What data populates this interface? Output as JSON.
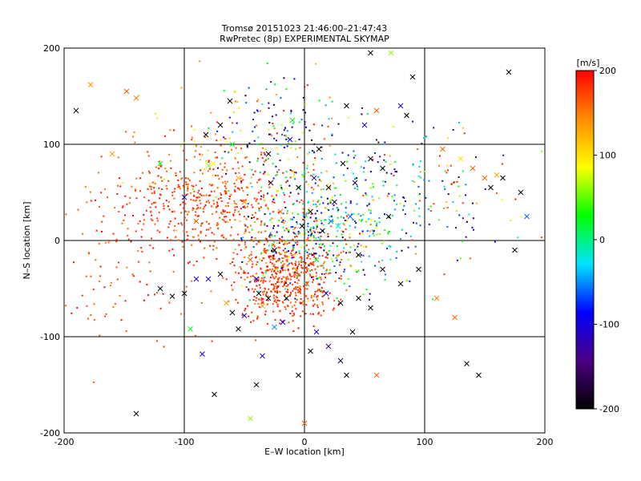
{
  "chart_data": {
    "type": "scatter",
    "title": "Tromsø 20151023 21:46:00–21:47:43",
    "subtitle": "RwPretec (8p) EXPERIMENTAL SKYMAP",
    "xlabel": "E–W location [km]",
    "ylabel": "N–S location [km]",
    "xlim": [
      -200,
      200
    ],
    "ylim": [
      -200,
      200
    ],
    "x_ticks": [
      -200,
      -100,
      0,
      100,
      200
    ],
    "y_ticks": [
      -200,
      -100,
      0,
      100,
      200
    ],
    "grid": true,
    "colorbar": {
      "label": "[m/s]",
      "range": [
        -200,
        200
      ],
      "ticks": [
        200,
        100,
        0,
        -100,
        -200
      ],
      "colormap": [
        "#000000",
        "#4b0082",
        "#0000ff",
        "#00e5ff",
        "#00ff00",
        "#ffff00",
        "#ff8c00",
        "#ff0000"
      ]
    },
    "series": [
      {
        "marker": "cross",
        "points": [
          [
            -178,
            162,
            140
          ],
          [
            -160,
            90,
            130
          ],
          [
            -148,
            155,
            160
          ],
          [
            -140,
            148,
            150
          ],
          [
            -120,
            80,
            20
          ],
          [
            -100,
            45,
            -120
          ],
          [
            -90,
            20,
            160
          ],
          [
            -82,
            110,
            -200
          ],
          [
            -80,
            78,
            60
          ],
          [
            -76,
            80,
            90
          ],
          [
            -70,
            120,
            -200
          ],
          [
            -62,
            145,
            -200
          ],
          [
            -60,
            100,
            20
          ],
          [
            -55,
            65,
            120
          ],
          [
            -50,
            40,
            140
          ],
          [
            -45,
            -20,
            160
          ],
          [
            -40,
            -40,
            -100
          ],
          [
            -38,
            -55,
            -200
          ],
          [
            -35,
            -68,
            140
          ],
          [
            -30,
            90,
            -200
          ],
          [
            -28,
            60,
            -180
          ],
          [
            -25,
            -10,
            -200
          ],
          [
            -20,
            30,
            160
          ],
          [
            -18,
            -85,
            -100
          ],
          [
            -15,
            -60,
            -200
          ],
          [
            -12,
            105,
            -120
          ],
          [
            -10,
            125,
            30
          ],
          [
            -8,
            -35,
            160
          ],
          [
            -5,
            55,
            -200
          ],
          [
            -2,
            15,
            -200
          ],
          [
            2,
            -45,
            170
          ],
          [
            5,
            30,
            -200
          ],
          [
            8,
            65,
            -120
          ],
          [
            10,
            -20,
            20
          ],
          [
            12,
            95,
            -200
          ],
          [
            15,
            10,
            -200
          ],
          [
            18,
            -55,
            -100
          ],
          [
            20,
            55,
            -200
          ],
          [
            22,
            20,
            -50
          ],
          [
            25,
            40,
            -180
          ],
          [
            28,
            15,
            -30
          ],
          [
            30,
            -65,
            -200
          ],
          [
            32,
            80,
            -200
          ],
          [
            35,
            140,
            -200
          ],
          [
            38,
            25,
            -60
          ],
          [
            40,
            -95,
            -200
          ],
          [
            42,
            60,
            -180
          ],
          [
            45,
            -15,
            -200
          ],
          [
            50,
            120,
            -100
          ],
          [
            55,
            85,
            -200
          ],
          [
            60,
            -140,
            160
          ],
          [
            65,
            75,
            -200
          ],
          [
            70,
            25,
            -200
          ],
          [
            80,
            -45,
            -200
          ],
          [
            85,
            130,
            -200
          ],
          [
            90,
            170,
            -200
          ],
          [
            95,
            -30,
            -200
          ],
          [
            110,
            -60,
            150
          ],
          [
            115,
            95,
            160
          ],
          [
            125,
            -80,
            160
          ],
          [
            130,
            85,
            100
          ],
          [
            135,
            -128,
            -200
          ],
          [
            140,
            75,
            160
          ],
          [
            145,
            -140,
            -200
          ],
          [
            150,
            65,
            160
          ],
          [
            155,
            55,
            -200
          ],
          [
            160,
            68,
            130
          ],
          [
            165,
            65,
            -200
          ],
          [
            170,
            175,
            -200
          ],
          [
            175,
            -10,
            -200
          ],
          [
            180,
            50,
            -200
          ],
          [
            185,
            25,
            -60
          ],
          [
            -120,
            -50,
            -200
          ],
          [
            -110,
            -58,
            -200
          ],
          [
            -100,
            -55,
            -200
          ],
          [
            -95,
            -92,
            20
          ],
          [
            -90,
            -40,
            -100
          ],
          [
            -85,
            -118,
            -100
          ],
          [
            -80,
            -40,
            -100
          ],
          [
            -75,
            -160,
            -200
          ],
          [
            -70,
            -35,
            -200
          ],
          [
            -65,
            -65,
            130
          ],
          [
            -60,
            -75,
            -200
          ],
          [
            -55,
            -92,
            -200
          ],
          [
            -50,
            -78,
            -100
          ],
          [
            -45,
            -185,
            60
          ],
          [
            -40,
            -150,
            -200
          ],
          [
            -35,
            -120,
            -100
          ],
          [
            -30,
            -60,
            -200
          ],
          [
            -25,
            -90,
            -50
          ],
          [
            -5,
            -140,
            -200
          ],
          [
            0,
            -190,
            160
          ],
          [
            5,
            -115,
            -200
          ],
          [
            10,
            -95,
            -100
          ],
          [
            20,
            -110,
            -150
          ],
          [
            30,
            -125,
            -180
          ],
          [
            35,
            -140,
            -200
          ],
          [
            45,
            -60,
            -200
          ],
          [
            55,
            -70,
            -200
          ],
          [
            65,
            -30,
            -200
          ],
          [
            -140,
            -180,
            -200
          ],
          [
            -190,
            135,
            -200
          ],
          [
            55,
            195,
            -200
          ],
          [
            60,
            135,
            160
          ],
          [
            72,
            195,
            60
          ],
          [
            80,
            140,
            -100
          ]
        ]
      },
      {
        "marker": "dot",
        "cluster_summary": [
          {
            "x_center": -15,
            "y_center": -40,
            "n": 520,
            "v_range": [
              150,
              200
            ]
          },
          {
            "x_center": 5,
            "y_center": 5,
            "n": 300,
            "v_range": [
              -200,
              200
            ]
          },
          {
            "x_center": 30,
            "y_center": 20,
            "n": 150,
            "v_range": [
              -80,
              60
            ]
          },
          {
            "x_center": -80,
            "y_center": 80,
            "n": 90,
            "v_range": [
              60,
              200
            ]
          },
          {
            "x_center": -60,
            "y_center": 40,
            "n": 260,
            "v_range": [
              150,
              200
            ]
          },
          {
            "x_center": -120,
            "y_center": 40,
            "n": 200,
            "v_range": [
              150,
              200
            ]
          },
          {
            "x_center": -20,
            "y_center": 110,
            "n": 160,
            "v_range": [
              -200,
              200
            ]
          },
          {
            "x_center": 60,
            "y_center": 60,
            "n": 140,
            "v_range": [
              -200,
              200
            ]
          },
          {
            "x_center": 120,
            "y_center": 40,
            "n": 80,
            "v_range": [
              -200,
              200
            ]
          },
          {
            "x_center": -150,
            "y_center": -40,
            "n": 80,
            "v_range": [
              150,
              200
            ]
          }
        ]
      }
    ]
  }
}
